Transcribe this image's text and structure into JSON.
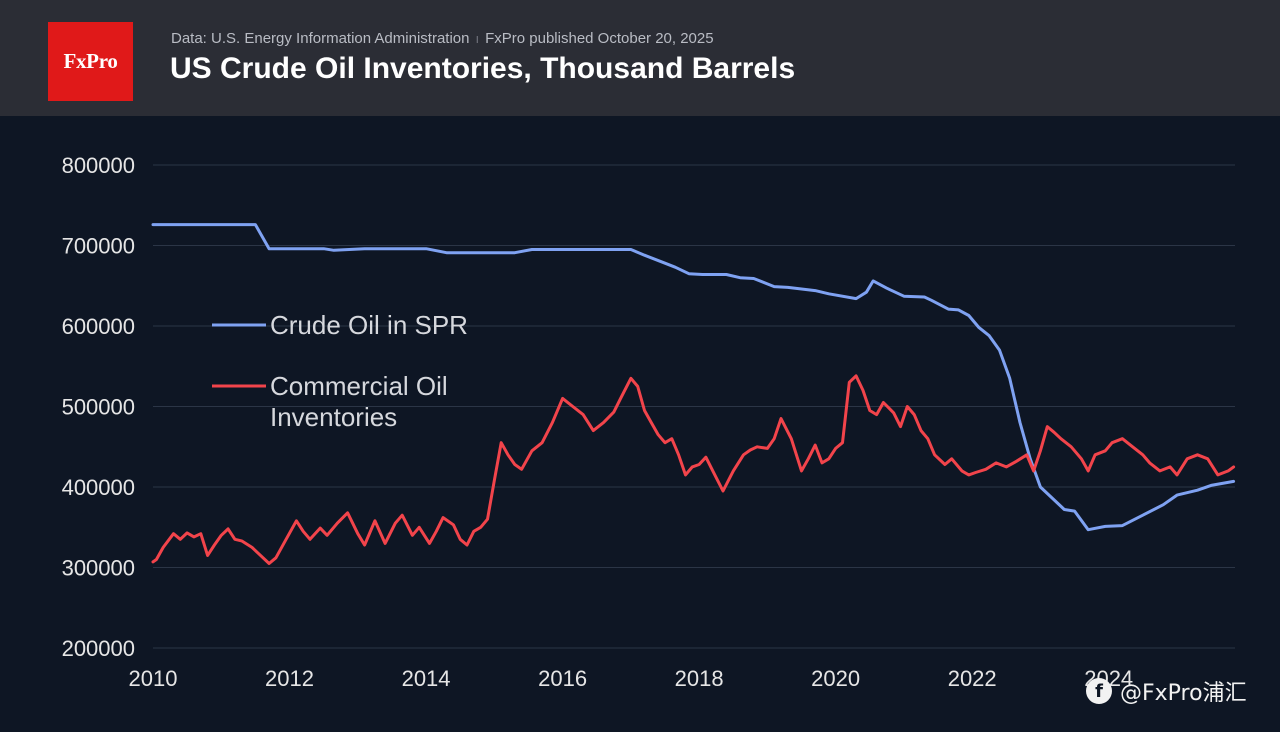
{
  "header": {
    "logo_text": "FxPro",
    "source": "Data: U.S. Energy Information Administration",
    "separator": "ı",
    "published": "FxPro published October 20, 2025",
    "title": "US Crude Oil Inventories, Thousand Barrels"
  },
  "watermark": {
    "icon": "facebook-icon",
    "icon_glyph": "f",
    "text": "@FxPro浦汇"
  },
  "colors": {
    "background": "#0e1624",
    "header_bg": "#2b2d35",
    "logo_bg": "#e01919",
    "grid": "#2b3546",
    "spr": "#7fa2f2",
    "commercial": "#f2444b",
    "text": "#e6e6e6"
  },
  "chart_data": {
    "type": "line",
    "title": "US Crude Oil Inventories, Thousand Barrels",
    "xlabel": "",
    "ylabel": "",
    "xlim": [
      2010,
      2025.85
    ],
    "ylim": [
      200000,
      800000
    ],
    "x_ticks": [
      2010,
      2012,
      2014,
      2016,
      2018,
      2020,
      2022,
      2024
    ],
    "y_ticks": [
      200000,
      300000,
      400000,
      500000,
      600000,
      700000,
      800000
    ],
    "grid": "horizontal",
    "legend_position": "center-left",
    "series": [
      {
        "name": "Crude Oil in SPR",
        "color": "#7fa2f2",
        "x": [
          2010,
          2011.5,
          2011.7,
          2012.5,
          2012.65,
          2013.1,
          2014,
          2014.3,
          2015.3,
          2015.55,
          2016.5,
          2017.0,
          2017.2,
          2017.5,
          2017.65,
          2017.85,
          2018.05,
          2018.4,
          2018.6,
          2018.8,
          2019.1,
          2019.3,
          2019.7,
          2019.9,
          2020.3,
          2020.45,
          2020.55,
          2020.75,
          2021.0,
          2021.3,
          2021.4,
          2021.65,
          2021.8,
          2021.95,
          2022.1,
          2022.25,
          2022.4,
          2022.55,
          2022.7,
          2022.85,
          2023.0,
          2023.35,
          2023.5,
          2023.7,
          2023.95,
          2024.2,
          2024.5,
          2024.8,
          2025.0,
          2025.3,
          2025.5,
          2025.83
        ],
        "y": [
          726000,
          726000,
          696000,
          696000,
          694000,
          696000,
          696000,
          691000,
          691000,
          695000,
          695000,
          695000,
          688000,
          678000,
          673000,
          665000,
          664000,
          664000,
          660000,
          659000,
          649000,
          648000,
          644000,
          640000,
          634000,
          642000,
          656000,
          647000,
          637000,
          636000,
          632000,
          621000,
          620000,
          613000,
          598000,
          588000,
          570000,
          535000,
          480000,
          435000,
          400000,
          372000,
          370000,
          347000,
          351000,
          352000,
          365000,
          378000,
          390000,
          396000,
          402000,
          407000
        ]
      },
      {
        "name": "Commercial Oil Inventories",
        "color": "#f2444b",
        "x": [
          2010,
          2010.05,
          2010.15,
          2010.3,
          2010.4,
          2010.5,
          2010.6,
          2010.7,
          2010.8,
          2010.9,
          2011.0,
          2011.1,
          2011.2,
          2011.3,
          2011.45,
          2011.55,
          2011.7,
          2011.8,
          2011.95,
          2012.1,
          2012.2,
          2012.3,
          2012.45,
          2012.55,
          2012.7,
          2012.85,
          2013.0,
          2013.1,
          2013.25,
          2013.4,
          2013.55,
          2013.65,
          2013.8,
          2013.9,
          2014.05,
          2014.15,
          2014.25,
          2014.4,
          2014.5,
          2014.6,
          2014.7,
          2014.8,
          2014.9,
          2015.0,
          2015.1,
          2015.2,
          2015.3,
          2015.4,
          2015.55,
          2015.7,
          2015.85,
          2016.0,
          2016.15,
          2016.3,
          2016.45,
          2016.6,
          2016.75,
          2016.85,
          2017.0,
          2017.1,
          2017.2,
          2017.3,
          2017.4,
          2017.5,
          2017.6,
          2017.7,
          2017.8,
          2017.9,
          2018.0,
          2018.1,
          2018.2,
          2018.35,
          2018.5,
          2018.65,
          2018.75,
          2018.85,
          2019.0,
          2019.1,
          2019.2,
          2019.35,
          2019.5,
          2019.6,
          2019.7,
          2019.8,
          2019.9,
          2020.0,
          2020.1,
          2020.2,
          2020.3,
          2020.4,
          2020.5,
          2020.6,
          2020.7,
          2020.85,
          2020.95,
          2021.05,
          2021.15,
          2021.25,
          2021.35,
          2021.45,
          2021.6,
          2021.7,
          2021.85,
          2021.95,
          2022.05,
          2022.2,
          2022.35,
          2022.5,
          2022.65,
          2022.8,
          2022.9,
          2023.0,
          2023.1,
          2023.2,
          2023.3,
          2023.45,
          2023.6,
          2023.7,
          2023.8,
          2023.95,
          2024.05,
          2024.2,
          2024.35,
          2024.5,
          2024.6,
          2024.75,
          2024.9,
          2025.0,
          2025.15,
          2025.3,
          2025.45,
          2025.6,
          2025.75,
          2025.83
        ],
        "y": [
          307000,
          310000,
          325000,
          342000,
          335000,
          343000,
          338000,
          342000,
          315000,
          328000,
          340000,
          348000,
          335000,
          333000,
          325000,
          317000,
          305000,
          312000,
          335000,
          358000,
          345000,
          335000,
          349000,
          340000,
          355000,
          368000,
          342000,
          328000,
          358000,
          330000,
          355000,
          365000,
          340000,
          350000,
          330000,
          345000,
          362000,
          353000,
          335000,
          328000,
          345000,
          350000,
          360000,
          408000,
          455000,
          440000,
          428000,
          422000,
          445000,
          455000,
          480000,
          510000,
          500000,
          490000,
          470000,
          480000,
          493000,
          510000,
          535000,
          525000,
          495000,
          480000,
          465000,
          455000,
          460000,
          440000,
          415000,
          425000,
          428000,
          437000,
          420000,
          395000,
          420000,
          440000,
          446000,
          450000,
          448000,
          460000,
          485000,
          460000,
          420000,
          435000,
          452000,
          430000,
          435000,
          448000,
          455000,
          530000,
          538000,
          520000,
          495000,
          490000,
          505000,
          492000,
          475000,
          500000,
          490000,
          470000,
          460000,
          440000,
          428000,
          435000,
          420000,
          415000,
          418000,
          422000,
          430000,
          425000,
          432000,
          440000,
          420000,
          445000,
          475000,
          468000,
          460000,
          450000,
          435000,
          420000,
          440000,
          445000,
          455000,
          460000,
          450000,
          440000,
          430000,
          420000,
          425000,
          415000,
          435000,
          440000,
          435000,
          415000,
          420000,
          425000
        ]
      }
    ]
  }
}
